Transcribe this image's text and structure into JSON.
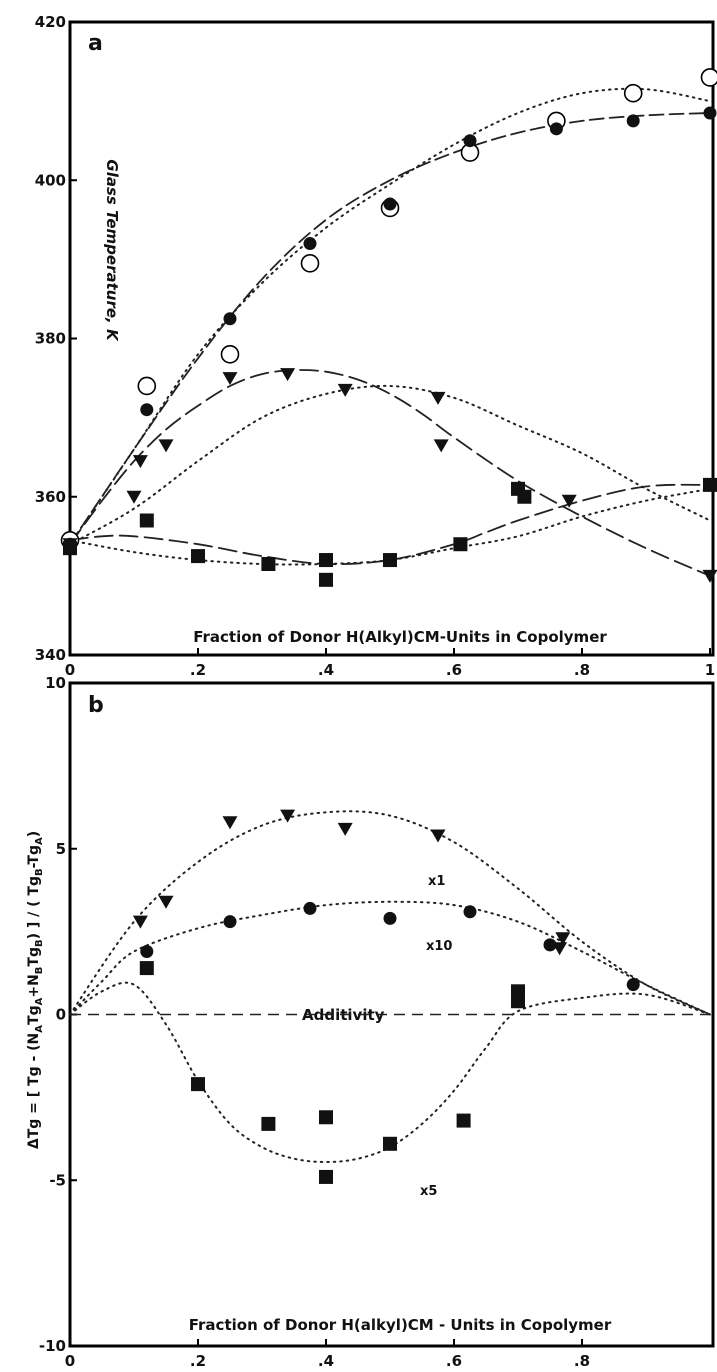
{
  "chart_data": [
    {
      "type": "scatter",
      "panel_label": "a",
      "xlabel": "Fraction of Donor H(Alkyl)CM-Units in Copolymer",
      "ylabel": "Glass Temperature,  K",
      "xlim": [
        0,
        1
      ],
      "ylim": [
        340,
        420
      ],
      "xticks": [
        0,
        0.2,
        0.4,
        0.6,
        0.8,
        1
      ],
      "xtick_labels": [
        "0",
        ".2",
        ".4",
        ".6",
        ".8",
        "1"
      ],
      "yticks": [
        340,
        360,
        380,
        400,
        420
      ],
      "ytick_labels": [
        "340",
        "360",
        "380",
        "400",
        "420"
      ],
      "series": [
        {
          "marker": "open-circle",
          "points": [
            [
              0,
              354.5
            ],
            [
              0.12,
              374
            ],
            [
              0.25,
              378
            ],
            [
              0.375,
              389.5
            ],
            [
              0.5,
              396.5
            ],
            [
              0.625,
              403.5
            ],
            [
              0.76,
              407.5
            ],
            [
              0.88,
              411
            ],
            [
              1.0,
              413
            ]
          ],
          "curve": {
            "style": "dotted",
            "x": [
              0,
              0.1,
              0.2,
              0.3,
              0.4,
              0.5,
              0.6,
              0.7,
              0.8,
              0.9,
              1.0
            ],
            "y": [
              354,
              366,
              378,
              387,
              394,
              399.5,
              404.5,
              408.5,
              411,
              411.5,
              410
            ]
          }
        },
        {
          "marker": "filled-circle",
          "points": [
            [
              0,
              354
            ],
            [
              0.12,
              371
            ],
            [
              0.25,
              382.5
            ],
            [
              0.375,
              392
            ],
            [
              0.5,
              397
            ],
            [
              0.625,
              405
            ],
            [
              0.76,
              406.5
            ],
            [
              0.88,
              407.5
            ],
            [
              1.0,
              408.5
            ]
          ],
          "curve": {
            "style": "dashed-solid",
            "x": [
              0,
              0.1,
              0.2,
              0.3,
              0.4,
              0.5,
              0.6,
              0.7,
              0.8,
              0.9,
              1.0
            ],
            "y": [
              354,
              366,
              377.5,
              387.5,
              395,
              400,
              403.5,
              406,
              407.5,
              408.2,
              408.5
            ]
          }
        },
        {
          "marker": "filled-triangle-down",
          "points": [
            [
              0,
              354
            ],
            [
              0.1,
              360
            ],
            [
              0.11,
              364.5
            ],
            [
              0.15,
              366.5
            ],
            [
              0.25,
              375
            ],
            [
              0.34,
              375.5
            ],
            [
              0.43,
              373.5
            ],
            [
              0.575,
              372.5
            ],
            [
              0.58,
              366.5
            ],
            [
              0.78,
              359.5
            ],
            [
              1.0,
              350
            ]
          ],
          "curve": {
            "style": "solid-dashed",
            "x": [
              0,
              0.05,
              0.1,
              0.15,
              0.2,
              0.25,
              0.3,
              0.35,
              0.4,
              0.45,
              0.5,
              0.55,
              0.6,
              0.7,
              0.8,
              0.9,
              1.0
            ],
            "y": [
              354,
              359.5,
              364.5,
              368.5,
              371.5,
              374,
              375.5,
              376,
              375.8,
              374.8,
              373,
              370.5,
              367.5,
              362,
              357.5,
              353.5,
              350
            ]
          },
          "curve2": {
            "style": "dotted",
            "x": [
              0,
              0.1,
              0.2,
              0.3,
              0.4,
              0.5,
              0.6,
              0.7,
              0.8,
              0.9,
              1.0
            ],
            "y": [
              354,
              358.5,
              364.5,
              370,
              373,
              374,
              372.5,
              369,
              365.5,
              361,
              357
            ]
          }
        },
        {
          "marker": "filled-square",
          "points": [
            [
              0,
              353.5
            ],
            [
              0.12,
              357
            ],
            [
              0.2,
              352.5
            ],
            [
              0.31,
              351.5
            ],
            [
              0.4,
              349.5
            ],
            [
              0.4,
              352
            ],
            [
              0.5,
              352
            ],
            [
              0.61,
              354
            ],
            [
              0.7,
              361
            ],
            [
              0.71,
              360
            ],
            [
              1.0,
              361.5
            ]
          ],
          "curve": {
            "style": "solid-dashed",
            "x": [
              0,
              0.05,
              0.1,
              0.2,
              0.3,
              0.4,
              0.5,
              0.6,
              0.65,
              0.7,
              0.8,
              0.9,
              1.0
            ],
            "y": [
              354.5,
              355,
              355,
              354,
              352.5,
              351.5,
              352,
              354,
              355.5,
              357,
              359.5,
              361.3,
              361.5
            ]
          },
          "curve2": {
            "style": "dotted",
            "x": [
              0,
              0.1,
              0.2,
              0.3,
              0.4,
              0.5,
              0.6,
              0.7,
              0.8,
              0.9,
              1.0
            ],
            "y": [
              354.5,
              353,
              352,
              351.5,
              351.5,
              352,
              353.5,
              355,
              357.5,
              359.5,
              361
            ]
          }
        }
      ]
    },
    {
      "type": "scatter",
      "panel_label": "b",
      "xlabel": "Fraction of Donor H(alkyl)CM - Units in Copolymer",
      "ylabel": "ΔTg = [ Tg - (NₐTgₐ+NʙTgʙ) ] / ( Tgʙ-Tgₐ)",
      "ylabel_parts": {
        "p1": "ΔTg = [ Tg - (N",
        "s1": "A",
        "p2": "Tg",
        "s2": "A",
        "p3": "+N",
        "s3": "B",
        "p4": "Tg",
        "s4": "B",
        "p5": ") ] / ( Tg",
        "s5": "B",
        "p6": "-Tg",
        "s6": "A",
        "p7": ")"
      },
      "xlim": [
        0,
        1
      ],
      "ylim": [
        -10,
        10
      ],
      "xticks": [
        0,
        0.2,
        0.4,
        0.6,
        0.8
      ],
      "xtick_labels": [
        "0",
        ".2",
        ".4",
        ".6",
        ".8"
      ],
      "yticks": [
        -10,
        -5,
        0,
        5,
        10
      ],
      "ytick_labels": [
        "-10",
        "-5",
        "0",
        "5",
        "10"
      ],
      "annotations": {
        "additivity": "Additivity",
        "x1": "x1",
        "x10": "x10",
        "x5": "x5"
      },
      "additivity_line": {
        "style": "dashed",
        "y": 0
      },
      "series": [
        {
          "marker": "filled-triangle-down",
          "scale_label": "x1",
          "points": [
            [
              0.11,
              2.8
            ],
            [
              0.15,
              3.4
            ],
            [
              0.25,
              5.8
            ],
            [
              0.34,
              6.0
            ],
            [
              0.43,
              5.6
            ],
            [
              0.575,
              5.4
            ],
            [
              0.77,
              2.3
            ],
            [
              0.765,
              2.0
            ]
          ],
          "curve": {
            "style": "dotted",
            "x": [
              0,
              0.1,
              0.2,
              0.3,
              0.4,
              0.5,
              0.6,
              0.7,
              0.8,
              0.9,
              1.0
            ],
            "y": [
              0,
              2.8,
              4.6,
              5.7,
              6.1,
              6.0,
              5.2,
              3.8,
              2.2,
              0.9,
              0
            ]
          }
        },
        {
          "marker": "filled-circle",
          "scale_label": "x10",
          "points": [
            [
              0.12,
              1.9
            ],
            [
              0.25,
              2.8
            ],
            [
              0.375,
              3.2
            ],
            [
              0.5,
              2.9
            ],
            [
              0.625,
              3.1
            ],
            [
              0.75,
              2.1
            ],
            [
              0.88,
              0.9
            ]
          ],
          "curve": {
            "style": "dotted",
            "x": [
              0,
              0.05,
              0.1,
              0.2,
              0.3,
              0.4,
              0.5,
              0.6,
              0.7,
              0.8,
              0.9,
              1.0
            ],
            "y": [
              0,
              1.0,
              1.9,
              2.6,
              3.0,
              3.3,
              3.4,
              3.3,
              2.8,
              1.9,
              0.9,
              0
            ]
          }
        },
        {
          "marker": "filled-square",
          "scale_label": "x5",
          "points": [
            [
              0.12,
              1.4
            ],
            [
              0.2,
              -2.1
            ],
            [
              0.31,
              -3.3
            ],
            [
              0.4,
              -3.1
            ],
            [
              0.4,
              -4.9
            ],
            [
              0.5,
              -3.9
            ],
            [
              0.615,
              -3.2
            ],
            [
              0.7,
              0.7
            ],
            [
              0.7,
              0.4
            ]
          ],
          "curve": {
            "style": "dotted",
            "x": [
              0,
              0.05,
              0.1,
              0.15,
              0.2,
              0.25,
              0.3,
              0.35,
              0.4,
              0.45,
              0.5,
              0.55,
              0.6,
              0.65,
              0.7,
              0.8,
              0.9,
              1.0
            ],
            "y": [
              0,
              0.7,
              0.9,
              -0.3,
              -2.0,
              -3.3,
              -4.0,
              -4.35,
              -4.45,
              -4.35,
              -4.0,
              -3.3,
              -2.3,
              -1.0,
              0.1,
              0.5,
              0.6,
              0
            ]
          }
        }
      ]
    }
  ]
}
